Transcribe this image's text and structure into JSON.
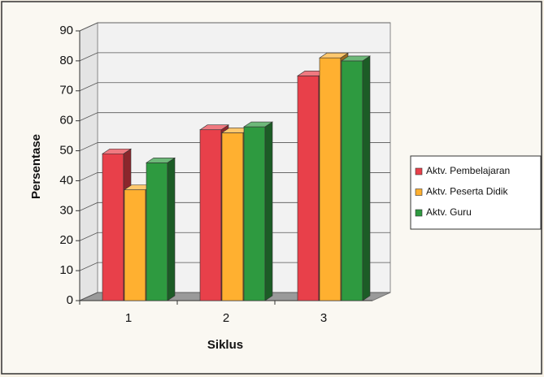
{
  "chart_data": {
    "type": "bar3d",
    "categories": [
      "1",
      "2",
      "3"
    ],
    "series": [
      {
        "name": "Aktv. Pembelajaran",
        "color": "#e8404a",
        "values": [
          49,
          57,
          75
        ]
      },
      {
        "name": "Aktv. Peserta Didik",
        "color": "#ffb030",
        "values": [
          37,
          56,
          81
        ]
      },
      {
        "name": "Aktv. Guru",
        "color": "#2e9a40",
        "values": [
          46,
          58,
          80
        ]
      }
    ],
    "xlabel": "Siklus",
    "ylabel": "Persentase",
    "ylim": [
      0,
      90
    ],
    "yticks": [
      0,
      10,
      20,
      30,
      40,
      50,
      60,
      70,
      80,
      90
    ],
    "grid": true,
    "legend": "right"
  }
}
